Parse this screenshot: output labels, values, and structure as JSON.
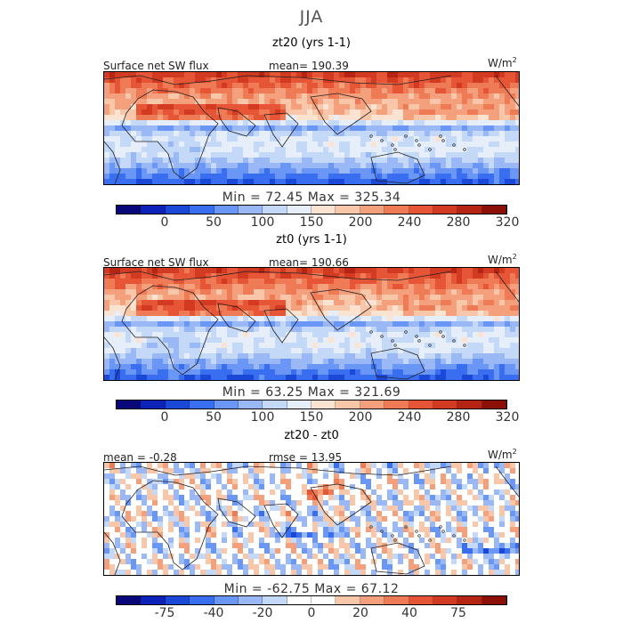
{
  "figure": {
    "title": "JJA"
  },
  "panels": [
    {
      "title": "zt20 (yrs 1-1)",
      "left_label": "Surface net SW flux",
      "stat_label": "mean= 190.39",
      "unit": "W/m",
      "unit_exp": "2",
      "minmax": "Min =  72.45  Max = 325.34",
      "colorbar_ticks": [
        "0",
        "50",
        "100",
        "150",
        "200",
        "240",
        "280",
        "320"
      ]
    },
    {
      "title": "zt0 (yrs 1-1)",
      "left_label": "Surface net SW flux",
      "stat_label": "mean= 190.66",
      "unit": "W/m",
      "unit_exp": "2",
      "minmax": "Min =  63.25  Max = 321.69",
      "colorbar_ticks": [
        "0",
        "50",
        "100",
        "150",
        "200",
        "240",
        "280",
        "320"
      ]
    },
    {
      "title": "zt20 - zt0",
      "left_label": "mean =  -0.28",
      "stat_label": "rmse =  13.95",
      "unit": "W/m",
      "unit_exp": "2",
      "minmax": "Min = -62.75  Max =  67.12",
      "colorbar_ticks": [
        "-75",
        "-40",
        "-20",
        "0",
        "20",
        "40",
        "75"
      ]
    }
  ],
  "colors": {
    "scale": [
      "#08087a",
      "#0c22b8",
      "#1c48d8",
      "#3a6ef0",
      "#6a96f6",
      "#9ab8f6",
      "#c4d8f8",
      "#e6eefa",
      "#fbe3d2",
      "#f8c6a8",
      "#f4a07c",
      "#ee7a56",
      "#e65636",
      "#d23a22",
      "#b62414",
      "#8c1008"
    ],
    "diff_scale": [
      "#08087a",
      "#0c22b8",
      "#1c48d8",
      "#3a6ef0",
      "#6a96f6",
      "#9ab8f6",
      "#c4d8f8",
      "#ffffff",
      "#ffffff",
      "#f8c6a8",
      "#f4a07c",
      "#ee7a56",
      "#e65636",
      "#d23a22",
      "#b62414",
      "#8c1008"
    ]
  },
  "chart_data": [
    {
      "type": "heatmap",
      "title": "zt20 (yrs 1-1)",
      "variable": "Surface net SW flux",
      "season": "JJA",
      "units": "W/m2",
      "mean": 190.39,
      "min": 72.45,
      "max": 325.34,
      "colorbar_levels": [
        0,
        50,
        100,
        150,
        200,
        240,
        280,
        320
      ],
      "lon_range": [
        -30,
        180
      ],
      "lat_range": [
        -60,
        70
      ]
    },
    {
      "type": "heatmap",
      "title": "zt0 (yrs 1-1)",
      "variable": "Surface net SW flux",
      "season": "JJA",
      "units": "W/m2",
      "mean": 190.66,
      "min": 63.25,
      "max": 321.69,
      "colorbar_levels": [
        0,
        50,
        100,
        150,
        200,
        240,
        280,
        320
      ],
      "lon_range": [
        -30,
        180
      ],
      "lat_range": [
        -60,
        70
      ]
    },
    {
      "type": "heatmap",
      "title": "zt20 - zt0",
      "variable": "Surface net SW flux difference",
      "season": "JJA",
      "units": "W/m2",
      "mean": -0.28,
      "rmse": 13.95,
      "min": -62.75,
      "max": 67.12,
      "colorbar_levels": [
        -75,
        -40,
        -20,
        0,
        20,
        40,
        75
      ],
      "lon_range": [
        -30,
        180
      ],
      "lat_range": [
        -60,
        70
      ]
    }
  ]
}
